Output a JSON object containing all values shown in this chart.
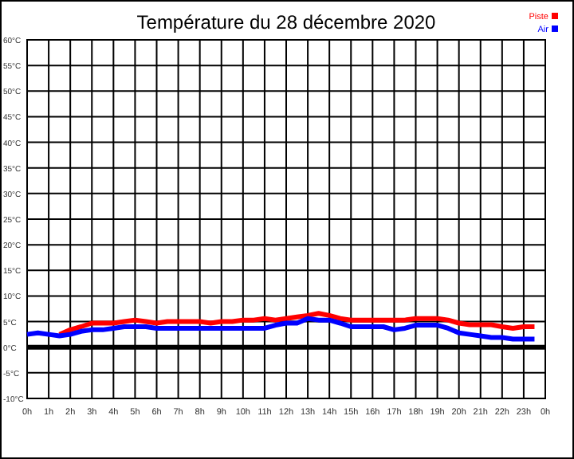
{
  "chart_data": {
    "type": "line",
    "title": "Température du 28 décembre 2020",
    "xlim": [
      "2020-12-28T00:00",
      "2020-12-29T00:00"
    ],
    "xticks": [
      {
        "value": "2020-12-28T00:00",
        "label": "0h"
      },
      {
        "value": "2020-12-28T01:00",
        "label": "1h"
      },
      {
        "value": "2020-12-28T02:00",
        "label": "2h"
      },
      {
        "value": "2020-12-28T03:00",
        "label": "3h"
      },
      {
        "value": "2020-12-28T04:00",
        "label": "4h"
      },
      {
        "value": "2020-12-28T05:00",
        "label": "5h"
      },
      {
        "value": "2020-12-28T06:00",
        "label": "6h"
      },
      {
        "value": "2020-12-28T07:00",
        "label": "7h"
      },
      {
        "value": "2020-12-28T08:00",
        "label": "8h"
      },
      {
        "value": "2020-12-28T09:00",
        "label": "9h"
      },
      {
        "value": "2020-12-28T10:00",
        "label": "10h"
      },
      {
        "value": "2020-12-28T11:00",
        "label": "11h"
      },
      {
        "value": "2020-12-28T12:00",
        "label": "12h"
      },
      {
        "value": "2020-12-28T13:00",
        "label": "13h"
      },
      {
        "value": "2020-12-28T14:00",
        "label": "14h"
      },
      {
        "value": "2020-12-28T15:00",
        "label": "15h"
      },
      {
        "value": "2020-12-28T16:00",
        "label": "16h"
      },
      {
        "value": "2020-12-28T17:00",
        "label": "17h"
      },
      {
        "value": "2020-12-28T18:00",
        "label": "18h"
      },
      {
        "value": "2020-12-28T19:00",
        "label": "19h"
      },
      {
        "value": "2020-12-28T20:00",
        "label": "20h"
      },
      {
        "value": "2020-12-28T21:00",
        "label": "21h"
      },
      {
        "value": "2020-12-28T22:00",
        "label": "22h"
      },
      {
        "value": "2020-12-28T23:00",
        "label": "23h"
      },
      {
        "value": "2020-12-29T00:00",
        "label": "0h"
      }
    ],
    "ylim": [
      -10,
      60
    ],
    "yticks": [
      {
        "value": -10,
        "label": "-10°C"
      },
      {
        "value": -5,
        "label": "-5°C"
      },
      {
        "value": 0,
        "label": "0°C"
      },
      {
        "value": 5,
        "label": "5°C"
      },
      {
        "value": 10,
        "label": "10°C"
      },
      {
        "value": 15,
        "label": "15°C"
      },
      {
        "value": 20,
        "label": "20°C"
      },
      {
        "value": 25,
        "label": "25°C"
      },
      {
        "value": 30,
        "label": "30°C"
      },
      {
        "value": 35,
        "label": "35°C"
      },
      {
        "value": 40,
        "label": "40°C"
      },
      {
        "value": 45,
        "label": "45°C"
      },
      {
        "value": 50,
        "label": "50°C"
      },
      {
        "value": 55,
        "label": "55°C"
      },
      {
        "value": 60,
        "label": "60°C"
      }
    ],
    "grid": true,
    "legend": "top right",
    "marker": "none",
    "line_style": "solid",
    "ref_lines": [
      {
        "axis": "y",
        "value": 0,
        "color": "#000000"
      }
    ],
    "x": [
      "2020-12-28T00:00",
      "2020-12-28T00:30",
      "2020-12-28T01:00",
      "2020-12-28T01:30",
      "2020-12-28T02:00",
      "2020-12-28T02:30",
      "2020-12-28T03:00",
      "2020-12-28T03:30",
      "2020-12-28T04:00",
      "2020-12-28T04:30",
      "2020-12-28T05:00",
      "2020-12-28T05:30",
      "2020-12-28T06:00",
      "2020-12-28T06:30",
      "2020-12-28T07:00",
      "2020-12-28T07:30",
      "2020-12-28T08:00",
      "2020-12-28T08:30",
      "2020-12-28T09:00",
      "2020-12-28T09:30",
      "2020-12-28T10:00",
      "2020-12-28T10:30",
      "2020-12-28T11:00",
      "2020-12-28T11:30",
      "2020-12-28T12:00",
      "2020-12-28T12:30",
      "2020-12-28T13:00",
      "2020-12-28T13:30",
      "2020-12-28T14:00",
      "2020-12-28T14:30",
      "2020-12-28T15:00",
      "2020-12-28T15:30",
      "2020-12-28T16:00",
      "2020-12-28T16:30",
      "2020-12-28T17:00",
      "2020-12-28T17:30",
      "2020-12-28T18:00",
      "2020-12-28T18:30",
      "2020-12-28T19:00",
      "2020-12-28T19:30",
      "2020-12-28T20:00",
      "2020-12-28T20:30",
      "2020-12-28T21:00",
      "2020-12-28T21:30",
      "2020-12-28T22:00",
      "2020-12-28T22:30",
      "2020-12-28T23:00",
      "2020-12-28T23:30"
    ],
    "series": [
      {
        "name": "Piste",
        "color": "#ff0000",
        "values": [
          null,
          null,
          null,
          2.5,
          3.4,
          4,
          4.7,
          4.7,
          4.7,
          5,
          5.3,
          5,
          4.7,
          5,
          5,
          5,
          5,
          4.7,
          5,
          5,
          5.3,
          5.3,
          5.6,
          5.3,
          5.6,
          5.9,
          6.2,
          6.6,
          6.2,
          5.6,
          5.3,
          5.3,
          5.3,
          5.3,
          5.3,
          5.3,
          5.6,
          5.6,
          5.6,
          5.3,
          4.7,
          4.4,
          4.4,
          4.4,
          4,
          3.7,
          4,
          4
        ]
      },
      {
        "name": "Air",
        "color": "#0000ff",
        "values": [
          2.5,
          2.8,
          2.5,
          2.2,
          2.5,
          3.1,
          3.4,
          3.4,
          3.7,
          4,
          4,
          4,
          3.7,
          3.7,
          3.7,
          3.7,
          3.7,
          3.7,
          3.7,
          3.7,
          3.7,
          3.7,
          3.7,
          4.3,
          4.7,
          4.7,
          5.6,
          5.3,
          5.3,
          4.7,
          4,
          4,
          4,
          4,
          3.4,
          3.7,
          4.3,
          4.3,
          4.3,
          3.7,
          2.8,
          2.5,
          2.2,
          1.9,
          1.9,
          1.6,
          1.6,
          1.6
        ]
      }
    ]
  }
}
